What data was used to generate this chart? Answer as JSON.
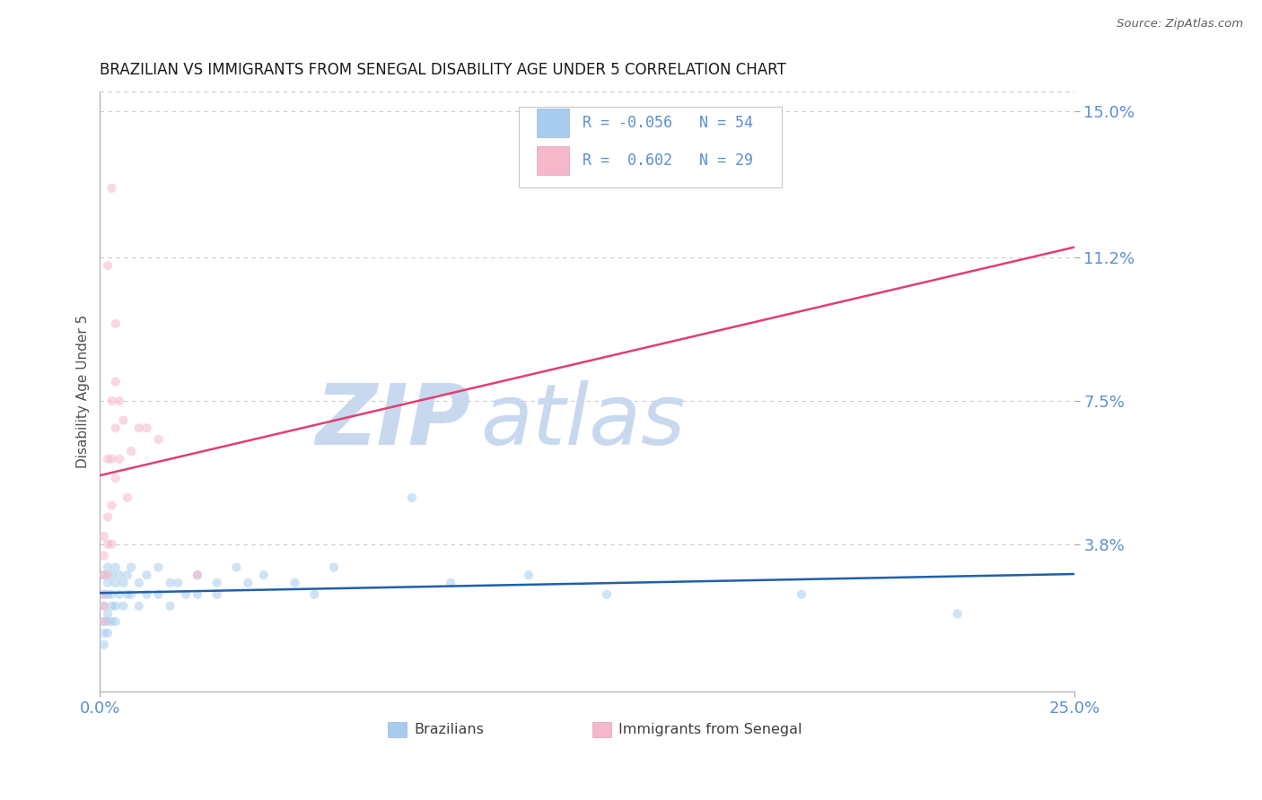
{
  "title": "BRAZILIAN VS IMMIGRANTS FROM SENEGAL DISABILITY AGE UNDER 5 CORRELATION CHART",
  "source": "Source: ZipAtlas.com",
  "ylabel": "Disability Age Under 5",
  "xlim": [
    0.0,
    0.25
  ],
  "ylim": [
    0.0,
    0.155
  ],
  "yticks": [
    0.038,
    0.075,
    0.112,
    0.15
  ],
  "ytick_labels": [
    "3.8%",
    "7.5%",
    "11.2%",
    "15.0%"
  ],
  "xtick_vals": [
    0.0,
    0.25
  ],
  "xtick_labels": [
    "0.0%",
    "25.0%"
  ],
  "legend_entries": [
    {
      "label": "Brazilians",
      "color": "#A8CCEE",
      "R": -0.056,
      "N": 54
    },
    {
      "label": "Immigrants from Senegal",
      "color": "#F5B8CB",
      "R": 0.602,
      "N": 29
    }
  ],
  "brazilian_dots": [
    [
      0.001,
      0.03
    ],
    [
      0.001,
      0.025
    ],
    [
      0.001,
      0.022
    ],
    [
      0.001,
      0.018
    ],
    [
      0.001,
      0.015
    ],
    [
      0.001,
      0.012
    ],
    [
      0.002,
      0.032
    ],
    [
      0.002,
      0.028
    ],
    [
      0.002,
      0.025
    ],
    [
      0.002,
      0.02
    ],
    [
      0.002,
      0.018
    ],
    [
      0.002,
      0.015
    ],
    [
      0.003,
      0.03
    ],
    [
      0.003,
      0.025
    ],
    [
      0.003,
      0.022
    ],
    [
      0.003,
      0.018
    ],
    [
      0.004,
      0.032
    ],
    [
      0.004,
      0.028
    ],
    [
      0.004,
      0.022
    ],
    [
      0.004,
      0.018
    ],
    [
      0.005,
      0.03
    ],
    [
      0.005,
      0.025
    ],
    [
      0.006,
      0.028
    ],
    [
      0.006,
      0.022
    ],
    [
      0.007,
      0.03
    ],
    [
      0.007,
      0.025
    ],
    [
      0.008,
      0.032
    ],
    [
      0.008,
      0.025
    ],
    [
      0.01,
      0.028
    ],
    [
      0.01,
      0.022
    ],
    [
      0.012,
      0.03
    ],
    [
      0.012,
      0.025
    ],
    [
      0.015,
      0.032
    ],
    [
      0.015,
      0.025
    ],
    [
      0.018,
      0.028
    ],
    [
      0.018,
      0.022
    ],
    [
      0.02,
      0.028
    ],
    [
      0.022,
      0.025
    ],
    [
      0.025,
      0.03
    ],
    [
      0.025,
      0.025
    ],
    [
      0.03,
      0.028
    ],
    [
      0.03,
      0.025
    ],
    [
      0.035,
      0.032
    ],
    [
      0.038,
      0.028
    ],
    [
      0.042,
      0.03
    ],
    [
      0.05,
      0.028
    ],
    [
      0.055,
      0.025
    ],
    [
      0.06,
      0.032
    ],
    [
      0.08,
      0.05
    ],
    [
      0.09,
      0.028
    ],
    [
      0.11,
      0.03
    ],
    [
      0.13,
      0.025
    ],
    [
      0.18,
      0.025
    ],
    [
      0.22,
      0.02
    ]
  ],
  "senegal_dots": [
    [
      0.001,
      0.04
    ],
    [
      0.001,
      0.035
    ],
    [
      0.001,
      0.03
    ],
    [
      0.001,
      0.025
    ],
    [
      0.001,
      0.022
    ],
    [
      0.001,
      0.018
    ],
    [
      0.002,
      0.06
    ],
    [
      0.002,
      0.045
    ],
    [
      0.002,
      0.038
    ],
    [
      0.002,
      0.03
    ],
    [
      0.003,
      0.075
    ],
    [
      0.003,
      0.06
    ],
    [
      0.003,
      0.048
    ],
    [
      0.003,
      0.038
    ],
    [
      0.004,
      0.08
    ],
    [
      0.004,
      0.068
    ],
    [
      0.004,
      0.055
    ],
    [
      0.005,
      0.075
    ],
    [
      0.005,
      0.06
    ],
    [
      0.006,
      0.07
    ],
    [
      0.007,
      0.05
    ],
    [
      0.008,
      0.062
    ],
    [
      0.012,
      0.068
    ],
    [
      0.015,
      0.065
    ],
    [
      0.002,
      0.11
    ],
    [
      0.003,
      0.13
    ],
    [
      0.004,
      0.095
    ],
    [
      0.01,
      0.068
    ],
    [
      0.025,
      0.03
    ]
  ],
  "watermark_zip_color": "#C8D8EE",
  "watermark_atlas_color": "#C8D8EE",
  "bg_color": "#FFFFFF",
  "dot_size": 55,
  "dot_alpha": 0.55,
  "brazilian_line_color": "#2060A8",
  "senegal_line_color": "#E04070",
  "senegal_line_dash": true,
  "grid_color": "#CCCCCC",
  "grid_dash": [
    4,
    4
  ],
  "title_fontsize": 12,
  "tick_label_color": "#5B8FD4",
  "axis_label_color": "#505050",
  "legend_box_color": "#E8E8E8"
}
